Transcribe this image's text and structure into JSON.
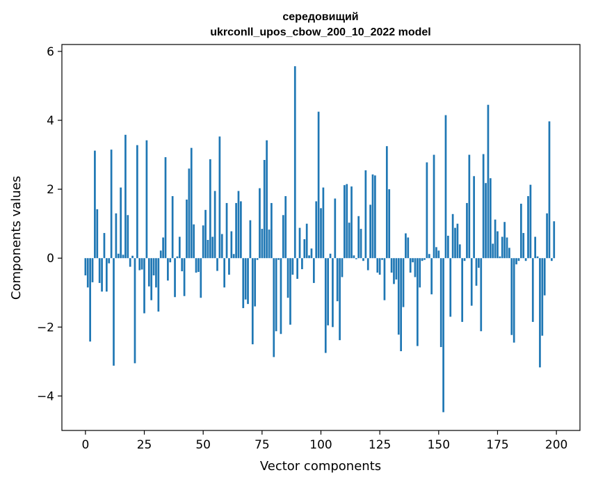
{
  "chart_data": {
    "type": "bar",
    "title": "середовищий",
    "subtitle": "ukrconll_upos_cbow_200_10_2022 model",
    "xlabel": "Vector components",
    "ylabel": "Components values",
    "xlim": [
      -10,
      210
    ],
    "ylim": [
      -5,
      6.2
    ],
    "grid": false,
    "bar_color": "#1f77b4",
    "xticks": [
      0,
      25,
      50,
      75,
      100,
      125,
      150,
      175,
      200
    ],
    "xtick_labels": [
      "0",
      "25",
      "50",
      "75",
      "100",
      "125",
      "150",
      "175",
      "200"
    ],
    "yticks": [
      -4,
      -2,
      0,
      2,
      4,
      6
    ],
    "ytick_labels": [
      "−4",
      "−2",
      "0",
      "2",
      "4",
      "6"
    ],
    "x": [
      0,
      1,
      2,
      3,
      4,
      5,
      6,
      7,
      8,
      9,
      10,
      11,
      12,
      13,
      14,
      15,
      16,
      17,
      18,
      19,
      20,
      21,
      22,
      23,
      24,
      25,
      26,
      27,
      28,
      29,
      30,
      31,
      32,
      33,
      34,
      35,
      36,
      37,
      38,
      39,
      40,
      41,
      42,
      43,
      44,
      45,
      46,
      47,
      48,
      49,
      50,
      51,
      52,
      53,
      54,
      55,
      56,
      57,
      58,
      59,
      60,
      61,
      62,
      63,
      64,
      65,
      66,
      67,
      68,
      69,
      70,
      71,
      72,
      73,
      74,
      75,
      76,
      77,
      78,
      79,
      80,
      81,
      82,
      83,
      84,
      85,
      86,
      87,
      88,
      89,
      90,
      91,
      92,
      93,
      94,
      95,
      96,
      97,
      98,
      99,
      100,
      101,
      102,
      103,
      104,
      105,
      106,
      107,
      108,
      109,
      110,
      111,
      112,
      113,
      114,
      115,
      116,
      117,
      118,
      119,
      120,
      121,
      122,
      123,
      124,
      125,
      126,
      127,
      128,
      129,
      130,
      131,
      132,
      133,
      134,
      135,
      136,
      137,
      138,
      139,
      140,
      141,
      142,
      143,
      144,
      145,
      146,
      147,
      148,
      149,
      150,
      151,
      152,
      153,
      154,
      155,
      156,
      157,
      158,
      159,
      160,
      161,
      162,
      163,
      164,
      165,
      166,
      167,
      168,
      169,
      170,
      171,
      172,
      173,
      174,
      175,
      176,
      177,
      178,
      179,
      180,
      181,
      182,
      183,
      184,
      185,
      186,
      187,
      188,
      189,
      190,
      191,
      192,
      193,
      194,
      195,
      196,
      197,
      198,
      199
    ],
    "values": [
      -0.5,
      -0.85,
      -2.42,
      -0.7,
      3.12,
      1.42,
      -0.72,
      -0.97,
      0.73,
      -0.97,
      -0.15,
      3.15,
      -3.12,
      1.3,
      0.13,
      2.05,
      0.1,
      3.58,
      1.25,
      -0.25,
      0.07,
      -3.05,
      3.28,
      -0.35,
      -0.33,
      -1.6,
      3.42,
      -0.82,
      -1.22,
      -0.5,
      -0.85,
      -1.55,
      0.22,
      0.6,
      2.93,
      -0.65,
      -0.12,
      1.8,
      -1.13,
      0.05,
      0.62,
      -0.38,
      -1.1,
      1.7,
      2.6,
      3.2,
      0.98,
      -0.42,
      -0.4,
      -1.15,
      0.95,
      1.4,
      0.53,
      2.87,
      0.62,
      1.95,
      -0.37,
      3.53,
      0.7,
      -0.85,
      1.6,
      -0.48,
      0.78,
      0.12,
      1.6,
      1.95,
      1.65,
      -1.45,
      -1.2,
      -1.33,
      1.1,
      -2.5,
      -1.4,
      -0.05,
      2.03,
      0.85,
      2.85,
      3.42,
      0.83,
      1.6,
      -2.87,
      -2.12,
      -0.05,
      -2.2,
      1.25,
      1.8,
      -1.15,
      -1.93,
      -0.48,
      5.57,
      -0.6,
      0.88,
      -0.32,
      0.55,
      1.0,
      0.08,
      0.28,
      -0.72,
      1.65,
      4.25,
      1.45,
      2.05,
      -2.75,
      -1.95,
      0.13,
      -2.0,
      1.73,
      -1.25,
      -2.38,
      -0.55,
      2.12,
      2.15,
      1.03,
      2.08,
      0.08,
      -0.03,
      1.22,
      0.85,
      -0.08,
      2.55,
      -0.35,
      1.55,
      2.43,
      2.4,
      -0.42,
      -0.48,
      -0.05,
      -1.22,
      3.25,
      2.0,
      -0.42,
      -0.75,
      -0.62,
      -2.22,
      -2.7,
      -1.42,
      0.72,
      0.6,
      -0.42,
      -0.12,
      -0.55,
      -2.55,
      -0.85,
      -0.08,
      -0.05,
      2.78,
      0.12,
      -1.05,
      3.0,
      0.32,
      0.22,
      -2.58,
      -4.47,
      4.15,
      0.65,
      -1.7,
      1.28,
      0.88,
      1.0,
      0.4,
      -1.85,
      -0.08,
      1.6,
      3.0,
      -1.38,
      2.38,
      -0.8,
      -0.28,
      -2.12,
      3.02,
      2.18,
      4.45,
      2.32,
      0.42,
      1.12,
      0.78,
      0.05,
      0.62,
      1.05,
      0.6,
      0.3,
      -2.23,
      -2.45,
      -0.18,
      -0.08,
      1.58,
      0.73,
      -0.08,
      1.8,
      2.13,
      -1.85,
      0.62,
      0.05,
      -3.17,
      -2.25,
      -1.08,
      1.3,
      3.97,
      -0.08,
      1.07
    ]
  }
}
